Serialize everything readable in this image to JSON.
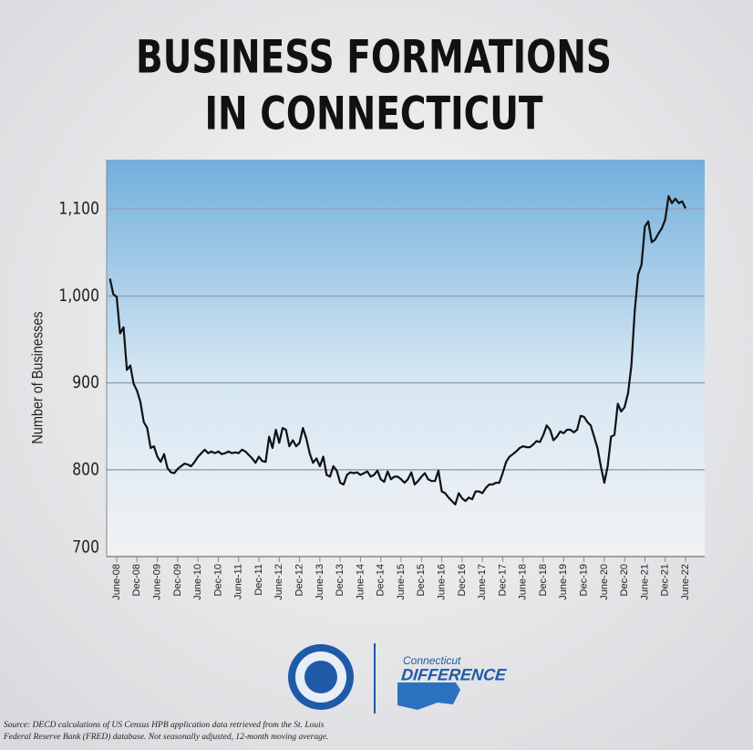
{
  "chart_data": {
    "type": "line",
    "title": [
      "BUSINESS FORMATIONS",
      "IN CONNECTICUT"
    ],
    "y_label": "Number of Businesses",
    "color": "#111111",
    "categories": [
      null,
      null,
      "June-08",
      null,
      null,
      null,
      null,
      null,
      "Dec-08",
      null,
      null,
      null,
      null,
      null,
      "June-09",
      null,
      null,
      null,
      null,
      null,
      "Dec-09",
      null,
      null,
      null,
      null,
      null,
      "June-10",
      null,
      null,
      null,
      null,
      null,
      "Dec-10",
      null,
      null,
      null,
      null,
      null,
      "June-11",
      null,
      null,
      null,
      null,
      null,
      "Dec-11",
      null,
      null,
      null,
      null,
      null,
      "June-12",
      null,
      null,
      null,
      null,
      null,
      "Dec-12",
      null,
      null,
      null,
      null,
      null,
      "June-13",
      null,
      null,
      null,
      null,
      null,
      "Dec-13",
      null,
      null,
      null,
      null,
      null,
      "June-14",
      null,
      null,
      null,
      null,
      null,
      "Dec-14",
      null,
      null,
      null,
      null,
      null,
      "June-15",
      null,
      null,
      null,
      null,
      null,
      "Dec-15",
      null,
      null,
      null,
      null,
      null,
      "June-16",
      null,
      null,
      null,
      null,
      null,
      "Dec-16",
      null,
      null,
      null,
      null,
      null,
      "June-17",
      null,
      null,
      null,
      null,
      null,
      "Dec-17",
      null,
      null,
      null,
      null,
      null,
      "June-18",
      null,
      null,
      null,
      null,
      null,
      "Dec-18",
      null,
      null,
      null,
      null,
      null,
      "June-19",
      null,
      null,
      null,
      null,
      null,
      "Dec-19",
      null,
      null,
      null,
      null,
      null,
      "June-20",
      null,
      null,
      null,
      null,
      null,
      "Dec-20",
      null,
      null,
      null,
      null,
      null,
      "June-21",
      null,
      null,
      null,
      null,
      null,
      "Dec-21",
      null,
      null,
      null,
      null,
      null,
      "June-22"
    ],
    "values": [
      1020,
      1002,
      999,
      957,
      964,
      915,
      920,
      899,
      891,
      878,
      855,
      848,
      825,
      827,
      815,
      809,
      818,
      802,
      797,
      796,
      801,
      804,
      807,
      806,
      804,
      809,
      815,
      819,
      823,
      819,
      821,
      819,
      821,
      818,
      819,
      821,
      819,
      820,
      819,
      823,
      821,
      817,
      813,
      808,
      815,
      810,
      809,
      838,
      825,
      846,
      831,
      848,
      846,
      827,
      834,
      827,
      831,
      848,
      836,
      819,
      808,
      813,
      804,
      815,
      794,
      792,
      804,
      799,
      785,
      783,
      794,
      797,
      796,
      797,
      794,
      796,
      798,
      792,
      794,
      799,
      789,
      786,
      798,
      789,
      792,
      792,
      789,
      785,
      789,
      797,
      783,
      787,
      792,
      796,
      789,
      787,
      787,
      799,
      775,
      773,
      768,
      764,
      760,
      773,
      767,
      764,
      768,
      766,
      775,
      775,
      773,
      779,
      783,
      783,
      785,
      785,
      796,
      809,
      815,
      818,
      821,
      825,
      827,
      826,
      826,
      829,
      833,
      832,
      840,
      851,
      846,
      834,
      838,
      844,
      842,
      846,
      846,
      843,
      846,
      862,
      861,
      855,
      851,
      838,
      825,
      804,
      785,
      804,
      838,
      840,
      876,
      867,
      872,
      888,
      920,
      983,
      1025,
      1036,
      1080,
      1086,
      1062,
      1065,
      1072,
      1078,
      1088,
      1115,
      1107,
      1112,
      1107,
      1109,
      1101
    ],
    "ylim": [
      700,
      1157
    ],
    "yticks": [
      700,
      800,
      900,
      {
        "value": 1000,
        "label": "1,000"
      },
      {
        "value": 1100,
        "label": "1,100"
      }
    ],
    "grid": true
  },
  "footer": {
    "brand": [
      "Connecticut",
      "DIFFERENCE"
    ],
    "source": [
      "Source: DECD calculations of US Census HPB application data retrieved from the St. Louis",
      "Federal Reserve Bank (FRED) database. Not seasonally adjusted, 12-month moving average."
    ]
  }
}
